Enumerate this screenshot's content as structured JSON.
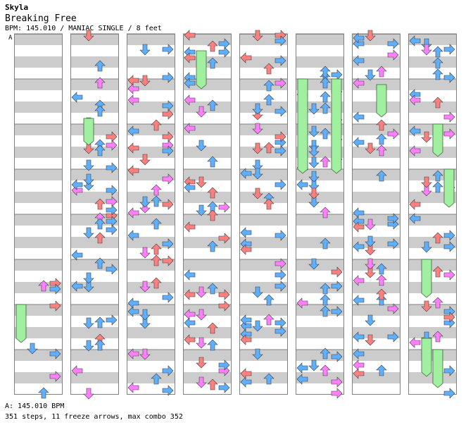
{
  "header": {
    "artist": "Skyla",
    "title": "Breaking Free",
    "meta": "BPM: 145.010 / MANIAC SINGLE / 8 feet"
  },
  "bpm_marker": "A",
  "footer": {
    "bpm_line": "A: 145.010 BPM",
    "stats_line": "351 steps, 11 freeze arrows, max combo 352"
  },
  "colors": {
    "quarter_arrow": "#ff7f7f",
    "eighth_arrow": "#5fafff",
    "sixteenth_arrow": "#ff7fff",
    "freeze": "#a0f0a0",
    "stripe": "#cccccc"
  },
  "chart_data": {
    "type": "step-chart",
    "lanes": [
      "left",
      "down",
      "up",
      "right"
    ],
    "measures_per_column": 8,
    "rows_per_measure": 16,
    "columns": 8,
    "notes_per_column_approx": [
      8,
      44,
      44,
      46,
      46,
      42,
      46,
      44
    ],
    "freeze_arrows": 11,
    "steps": 351,
    "max_combo": 352,
    "bpm": 145.01
  }
}
